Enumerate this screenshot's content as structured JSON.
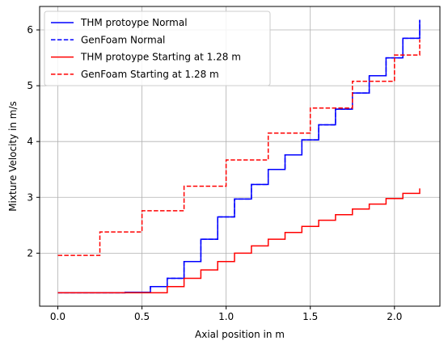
{
  "chart_data": {
    "type": "line",
    "xlabel": "Axial position in m",
    "ylabel": "Mixture Velocity in m/s",
    "xlim": [
      -0.108,
      2.27
    ],
    "ylim": [
      1.05,
      6.42
    ],
    "xticks": [
      0.0,
      0.5,
      1.0,
      1.5,
      2.0
    ],
    "xtick_labels": [
      "0.0",
      "0.5",
      "1.0",
      "1.5",
      "2.0"
    ],
    "yticks": [
      2,
      3,
      4,
      5,
      6
    ],
    "ytick_labels": [
      "2",
      "3",
      "4",
      "5",
      "6"
    ],
    "grid": true,
    "legend_position": "top-left",
    "series": [
      {
        "name": "THM protoype Normal",
        "color": "#0000ff",
        "dash": "solid",
        "x": [
          0.0,
          0.4,
          0.55,
          0.65,
          0.75,
          0.85,
          0.95,
          1.05,
          1.15,
          1.25,
          1.35,
          1.45,
          1.55,
          1.65,
          1.75,
          1.85,
          1.95,
          2.05,
          2.15
        ],
        "y": [
          1.29,
          1.3,
          1.4,
          1.55,
          1.85,
          2.25,
          2.65,
          2.97,
          3.23,
          3.5,
          3.76,
          4.03,
          4.3,
          4.58,
          4.87,
          5.18,
          5.5,
          5.85,
          6.18
        ]
      },
      {
        "name": "GenFoam Normal",
        "color": "#0000ff",
        "dash": "dashed",
        "x": [
          0.0,
          0.4,
          0.55,
          0.65,
          0.75,
          0.85,
          0.95,
          1.05,
          1.15,
          1.25,
          1.35,
          1.45,
          1.55,
          1.65,
          1.75,
          1.85,
          1.95,
          2.05,
          2.15
        ],
        "y": [
          1.29,
          1.3,
          1.4,
          1.55,
          1.85,
          2.25,
          2.65,
          2.97,
          3.23,
          3.5,
          3.76,
          4.03,
          4.3,
          4.58,
          4.87,
          5.18,
          5.5,
          5.85,
          6.18
        ]
      },
      {
        "name": "THM protoype Starting at 1.28 m",
        "color": "#ff0000",
        "dash": "solid",
        "x": [
          0.0,
          0.6,
          0.65,
          0.75,
          0.85,
          0.95,
          1.05,
          1.15,
          1.25,
          1.35,
          1.45,
          1.55,
          1.65,
          1.75,
          1.85,
          1.95,
          2.05,
          2.15
        ],
        "y": [
          1.29,
          1.29,
          1.4,
          1.55,
          1.7,
          1.85,
          2.0,
          2.13,
          2.25,
          2.37,
          2.48,
          2.59,
          2.69,
          2.79,
          2.88,
          2.98,
          3.07,
          3.16
        ]
      },
      {
        "name": "GenFoam Starting at 1.28 m",
        "color": "#ff0000",
        "dash": "dashed",
        "x": [
          0.0,
          0.25,
          0.5,
          0.75,
          1.0,
          1.25,
          1.5,
          1.75,
          2.0,
          2.15
        ],
        "y": [
          1.96,
          2.38,
          2.76,
          3.2,
          3.67,
          4.15,
          4.6,
          5.08,
          5.55,
          5.83
        ]
      }
    ]
  }
}
